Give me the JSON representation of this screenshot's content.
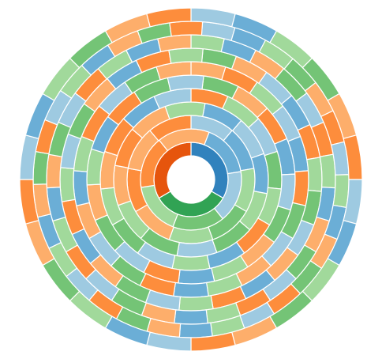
{
  "chart_data": {
    "type": "sunburst",
    "title": "",
    "palette": {
      "blue_dark": "#3182bd",
      "blue_mid": "#6baed6",
      "blue_light": "#9ecae1",
      "orange_dark": "#e6550d",
      "orange_mid": "#fd8d3c",
      "orange_light": "#fdae6b",
      "green_dark": "#31a354",
      "green_mid": "#74c476",
      "green_light": "#a1d99b"
    },
    "rings": [
      [
        "#3182bd",
        "#31a354",
        "#e6550d"
      ],
      [
        "#6baed6",
        "#9ecae1",
        "#74c476",
        "#a1d99b",
        "#fd8d3c",
        "#fdae6b"
      ],
      [
        "#9ecae1",
        "#6baed6",
        "#a1d99b",
        "#74c476",
        "#a1d99b",
        "#fdae6b",
        "#fd8d3c",
        "#fdae6b",
        "#fd8d3c"
      ],
      [
        "#6baed6",
        "#9ecae1",
        "#6baed6",
        "#a1d99b",
        "#74c476",
        "#9ecae1",
        "#74c476",
        "#a1d99b",
        "#fdae6b",
        "#fd8d3c",
        "#fdae6b",
        "#a1d99b"
      ],
      [
        "#fd8d3c",
        "#a1d99b",
        "#9ecae1",
        "#74c476",
        "#a1d99b",
        "#fd8d3c",
        "#6baed6",
        "#a1d99b",
        "#9ecae1",
        "#74c476",
        "#a1d99b",
        "#fdae6b",
        "#fd8d3c",
        "#6baed6",
        "#9ecae1"
      ],
      [
        "#74c476",
        "#fdae6b",
        "#fd8d3c",
        "#6baed6",
        "#9ecae1",
        "#74c476",
        "#fdae6b",
        "#a1d99b",
        "#6baed6",
        "#fd8d3c",
        "#9ecae1",
        "#74c476",
        "#fdae6b",
        "#a1d99b",
        "#6baed6",
        "#fd8d3c",
        "#74c476",
        "#9ecae1"
      ],
      [
        "#fdae6b",
        "#fd8d3c",
        "#a1d99b",
        "#9ecae1",
        "#6baed6",
        "#fd8d3c",
        "#74c476",
        "#9ecae1",
        "#fdae6b",
        "#a1d99b",
        "#6baed6",
        "#fd8d3c",
        "#74c476",
        "#9ecae1",
        "#fdae6b",
        "#6baed6",
        "#a1d99b",
        "#fd8d3c",
        "#9ecae1",
        "#74c476",
        "#fdae6b"
      ],
      [
        "#74c476",
        "#fdae6b",
        "#9ecae1",
        "#6baed6",
        "#fd8d3c",
        "#a1d99b",
        "#74c476",
        "#9ecae1",
        "#fdae6b",
        "#6baed6",
        "#fd8d3c",
        "#a1d99b",
        "#9ecae1",
        "#74c476",
        "#fdae6b",
        "#6baed6",
        "#fd8d3c",
        "#a1d99b",
        "#9ecae1",
        "#74c476",
        "#fdae6b",
        "#6baed6",
        "#fd8d3c",
        "#a1d99b"
      ],
      [
        "#a1d99b",
        "#6baed6",
        "#fdae6b",
        "#74c476",
        "#9ecae1",
        "#fd8d3c",
        "#a1d99b",
        "#6baed6",
        "#fdae6b",
        "#74c476",
        "#9ecae1",
        "#fd8d3c",
        "#a1d99b",
        "#6baed6",
        "#fdae6b",
        "#74c476",
        "#9ecae1",
        "#fd8d3c",
        "#a1d99b",
        "#6baed6",
        "#fdae6b",
        "#74c476",
        "#9ecae1",
        "#fd8d3c",
        "#a1d99b",
        "#6baed6",
        "#fdae6b"
      ],
      [
        "#9ecae1",
        "#6baed6",
        "#a1d99b",
        "#74c476",
        "#fdae6b",
        "#fd8d3c",
        "#9ecae1",
        "#a1d99b",
        "#6baed6",
        "#fdae6b",
        "#74c476",
        "#fd8d3c",
        "#9ecae1",
        "#a1d99b",
        "#6baed6",
        "#fdae6b",
        "#74c476",
        "#fd8d3c",
        "#9ecae1",
        "#a1d99b",
        "#6baed6",
        "#fdae6b",
        "#74c476",
        "#fd8d3c",
        "#9ecae1",
        "#a1d99b",
        "#6baed6",
        "#fdae6b",
        "#74c476",
        "#fd8d3c"
      ],
      [
        "#9ecae1",
        "#6baed6",
        "#a1d99b",
        "#74c476",
        "#fdae6b",
        "#fd8d3c",
        "#9ecae1",
        "#6baed6",
        "#a1d99b",
        "#74c476",
        "#fdae6b",
        "#fd8d3c",
        "#9ecae1",
        "#6baed6",
        "#a1d99b",
        "#74c476",
        "#fdae6b",
        "#fd8d3c",
        "#9ecae1",
        "#6baed6",
        "#a1d99b",
        "#74c476",
        "#fdae6b",
        "#fd8d3c"
      ]
    ]
  }
}
